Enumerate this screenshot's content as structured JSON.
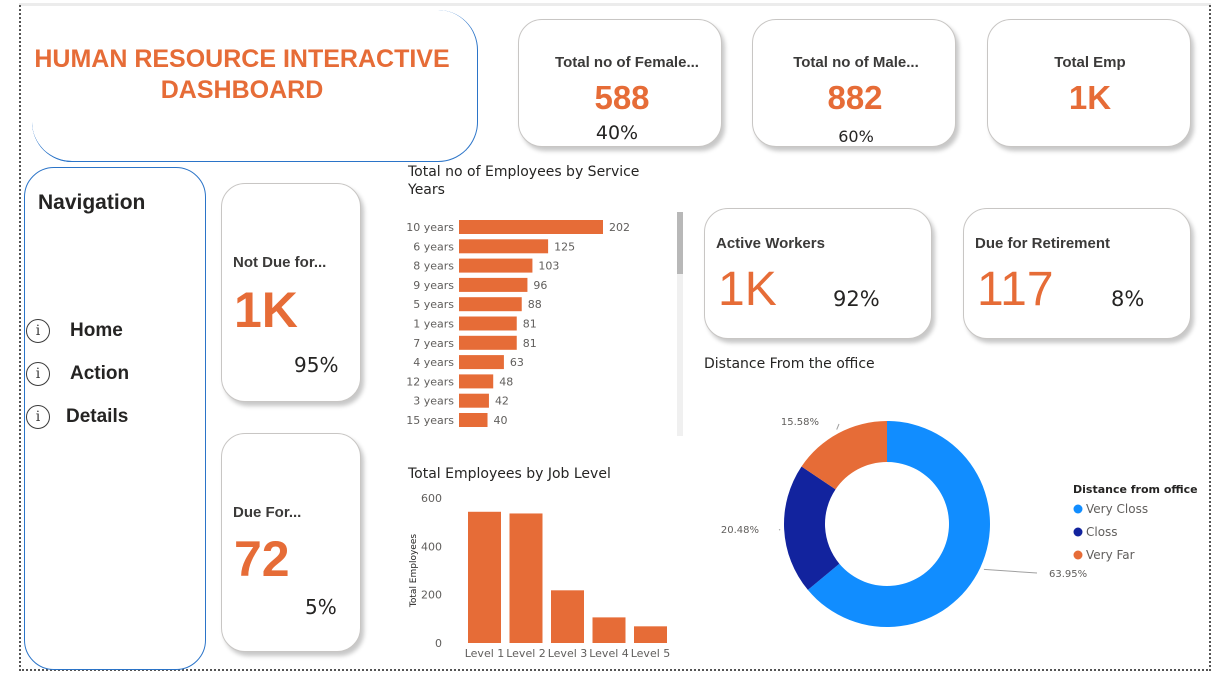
{
  "header": {
    "title_line1": "HUMAN RESOURCE INTERACTIVE",
    "title_line2": "DASHBOARD"
  },
  "kpis": {
    "female": {
      "label": "Total no of Female...",
      "value": "588",
      "pct": "40%"
    },
    "male": {
      "label": "Total no of Male...",
      "value": "882",
      "pct": "60%"
    },
    "total": {
      "label": "Total Emp",
      "value": "1K"
    },
    "not_due": {
      "label": "Not Due for...",
      "value": "1K",
      "pct": "95%"
    },
    "due_for": {
      "label": "Due For...",
      "value": "72",
      "pct": "5%"
    },
    "active": {
      "label": "Active Workers",
      "value": "1K",
      "pct": "92%"
    },
    "retirement": {
      "label": "Due for Retirement",
      "value": "117",
      "pct": "8%"
    }
  },
  "navigation": {
    "title": "Navigation",
    "items": [
      {
        "label": "Home",
        "icon": "info-icon"
      },
      {
        "label": "Action",
        "icon": "info-icon"
      },
      {
        "label": "Details",
        "icon": "info-icon"
      }
    ]
  },
  "colors": {
    "accent": "#e66c37",
    "very_closs": "#118dff",
    "closs": "#12239e",
    "very_far": "#e66c37",
    "nav_border": "#2b74c8"
  },
  "chart_data": [
    {
      "type": "bar",
      "orientation": "horizontal",
      "title": "Total no of Employees by Service Years",
      "categories": [
        "10 years",
        "6 years",
        "8 years",
        "9 years",
        "5 years",
        "1 years",
        "7 years",
        "4 years",
        "12 years",
        "3 years",
        "15 years"
      ],
      "values": [
        202,
        125,
        103,
        96,
        88,
        81,
        81,
        63,
        48,
        42,
        40
      ],
      "data_labels": true,
      "grid": false,
      "color": "#e66c37"
    },
    {
      "type": "bar",
      "title": "Total Employees by Job Level",
      "categories": [
        "Level 1",
        "Level 2",
        "Level 3",
        "Level 4",
        "Level 5"
      ],
      "values": [
        543,
        536,
        218,
        106,
        69
      ],
      "ylabel": "Total Employees",
      "ylim": [
        0,
        600
      ],
      "yticks": [
        "0",
        "200",
        "400",
        "600"
      ],
      "grid": false,
      "color": "#e66c37"
    },
    {
      "type": "pie",
      "donut": true,
      "title": "Distance From the office",
      "legend_title": "Distance from office",
      "legend_position": "right",
      "categories": [
        "Very Closs",
        "Closs",
        "Very Far"
      ],
      "values": [
        63.95,
        20.48,
        15.58
      ],
      "labels": [
        "63.95%",
        "20.48%",
        "15.58%"
      ],
      "colors": [
        "#118dff",
        "#12239e",
        "#e66c37"
      ]
    }
  ]
}
